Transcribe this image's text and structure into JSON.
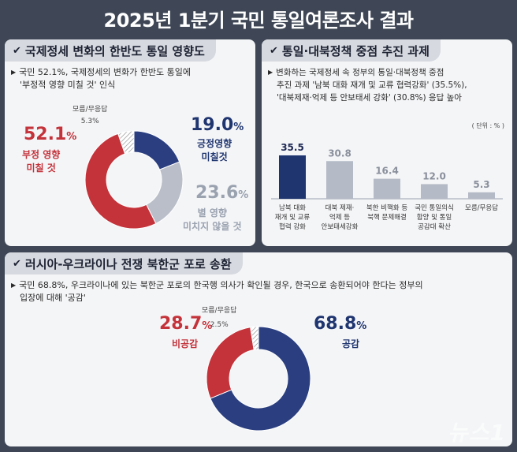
{
  "title": "2025년 1분기 국민 통일여론조사 결과",
  "colors": {
    "navy": "#2b3f80",
    "red": "#c4323a",
    "gray": "#b9bec8",
    "dark_navy": "#1f3570"
  },
  "panel1": {
    "heading": "국제정세 변화의 한반도 통일 영향도",
    "note_line1": "국민 52.1%, 국제정세의 변화가 한반도 통일에",
    "note_line2": "'부정적 영향 미칠 것' 인식",
    "dontknow_label": "모름/무응답",
    "dontknow_value": "5.3%",
    "neg_value": "52.1",
    "neg_label1": "부정 영향",
    "neg_label2": "미칠 것",
    "pos_value": "19.0",
    "pos_label1": "긍정영향",
    "pos_label2": "미칠것",
    "neutral_value": "23.6",
    "neutral_label1": "별 영향",
    "neutral_label2": "미치지 않을 것"
  },
  "panel2": {
    "heading": "통일·대북정책 중점 추진 과제",
    "note_line1": "변화하는 국제정세 속 정부의 통일·대북정책 중점",
    "note_line2": "추진 과제 '남북 대화 재개 및 교류 협력강화' (35.5%),",
    "note_line3": "'대북제재·억제 등 안보태세 강화' (30.8%) 응답 높아",
    "unit": "( 단위 : % )"
  },
  "panel3": {
    "heading": "러시아-우크라이나 전쟁 북한군 포로 송환",
    "note_line1": "국민 68.8%, 우크라이나에 있는 북한군 포로의 한국행 의사가 확인될 경우, 한국으로 송환되어야 한다는 정부의",
    "note_line2": "입장에 대해 '공감'",
    "dontknow_label": "모름/무응답",
    "dontknow_value": "2.5%",
    "disagree_value": "28.7",
    "disagree_label": "비공감",
    "agree_value": "68.8",
    "agree_label": "공감"
  },
  "pct_sign": "%",
  "watermark": "뉴스1",
  "chart_data": [
    {
      "type": "pie",
      "title": "국제정세 변화의 한반도 통일 영향도",
      "labels": [
        "긍정영향 미칠것",
        "별 영향 미치지 않을 것",
        "부정 영향 미칠 것",
        "모름/무응답"
      ],
      "values": [
        19.0,
        23.6,
        52.1,
        5.3
      ]
    },
    {
      "type": "bar",
      "title": "통일·대북정책 중점 추진 과제",
      "categories": [
        "남북 대화 재개 및 교류 협력 강화",
        "대북 제재·억제 등 안보태세 강화",
        "북한 비핵화 등 북핵 문제해결",
        "국민 통일의식 함양 및 통일 공감대 확산",
        "모름/무응답"
      ],
      "values": [
        35.5,
        30.8,
        16.4,
        12.0,
        5.3
      ],
      "ylabel": "( 단위 : % )"
    },
    {
      "type": "pie",
      "title": "러시아-우크라이나 전쟁 북한군 포로 송환",
      "labels": [
        "공감",
        "비공감",
        "모름/무응답"
      ],
      "values": [
        68.8,
        28.7,
        2.5
      ]
    }
  ],
  "bar_labels": [
    [
      "남북 대화",
      "재개 및 교류",
      "협력 강화"
    ],
    [
      "대북 제재·",
      "억제 등",
      "안보태세강화"
    ],
    [
      "북한 비핵화 등",
      "북핵 문제해결"
    ],
    [
      "국민 통일의식",
      "함양 및 통일",
      "공감대 확산"
    ],
    [
      "모름/무응답"
    ]
  ]
}
